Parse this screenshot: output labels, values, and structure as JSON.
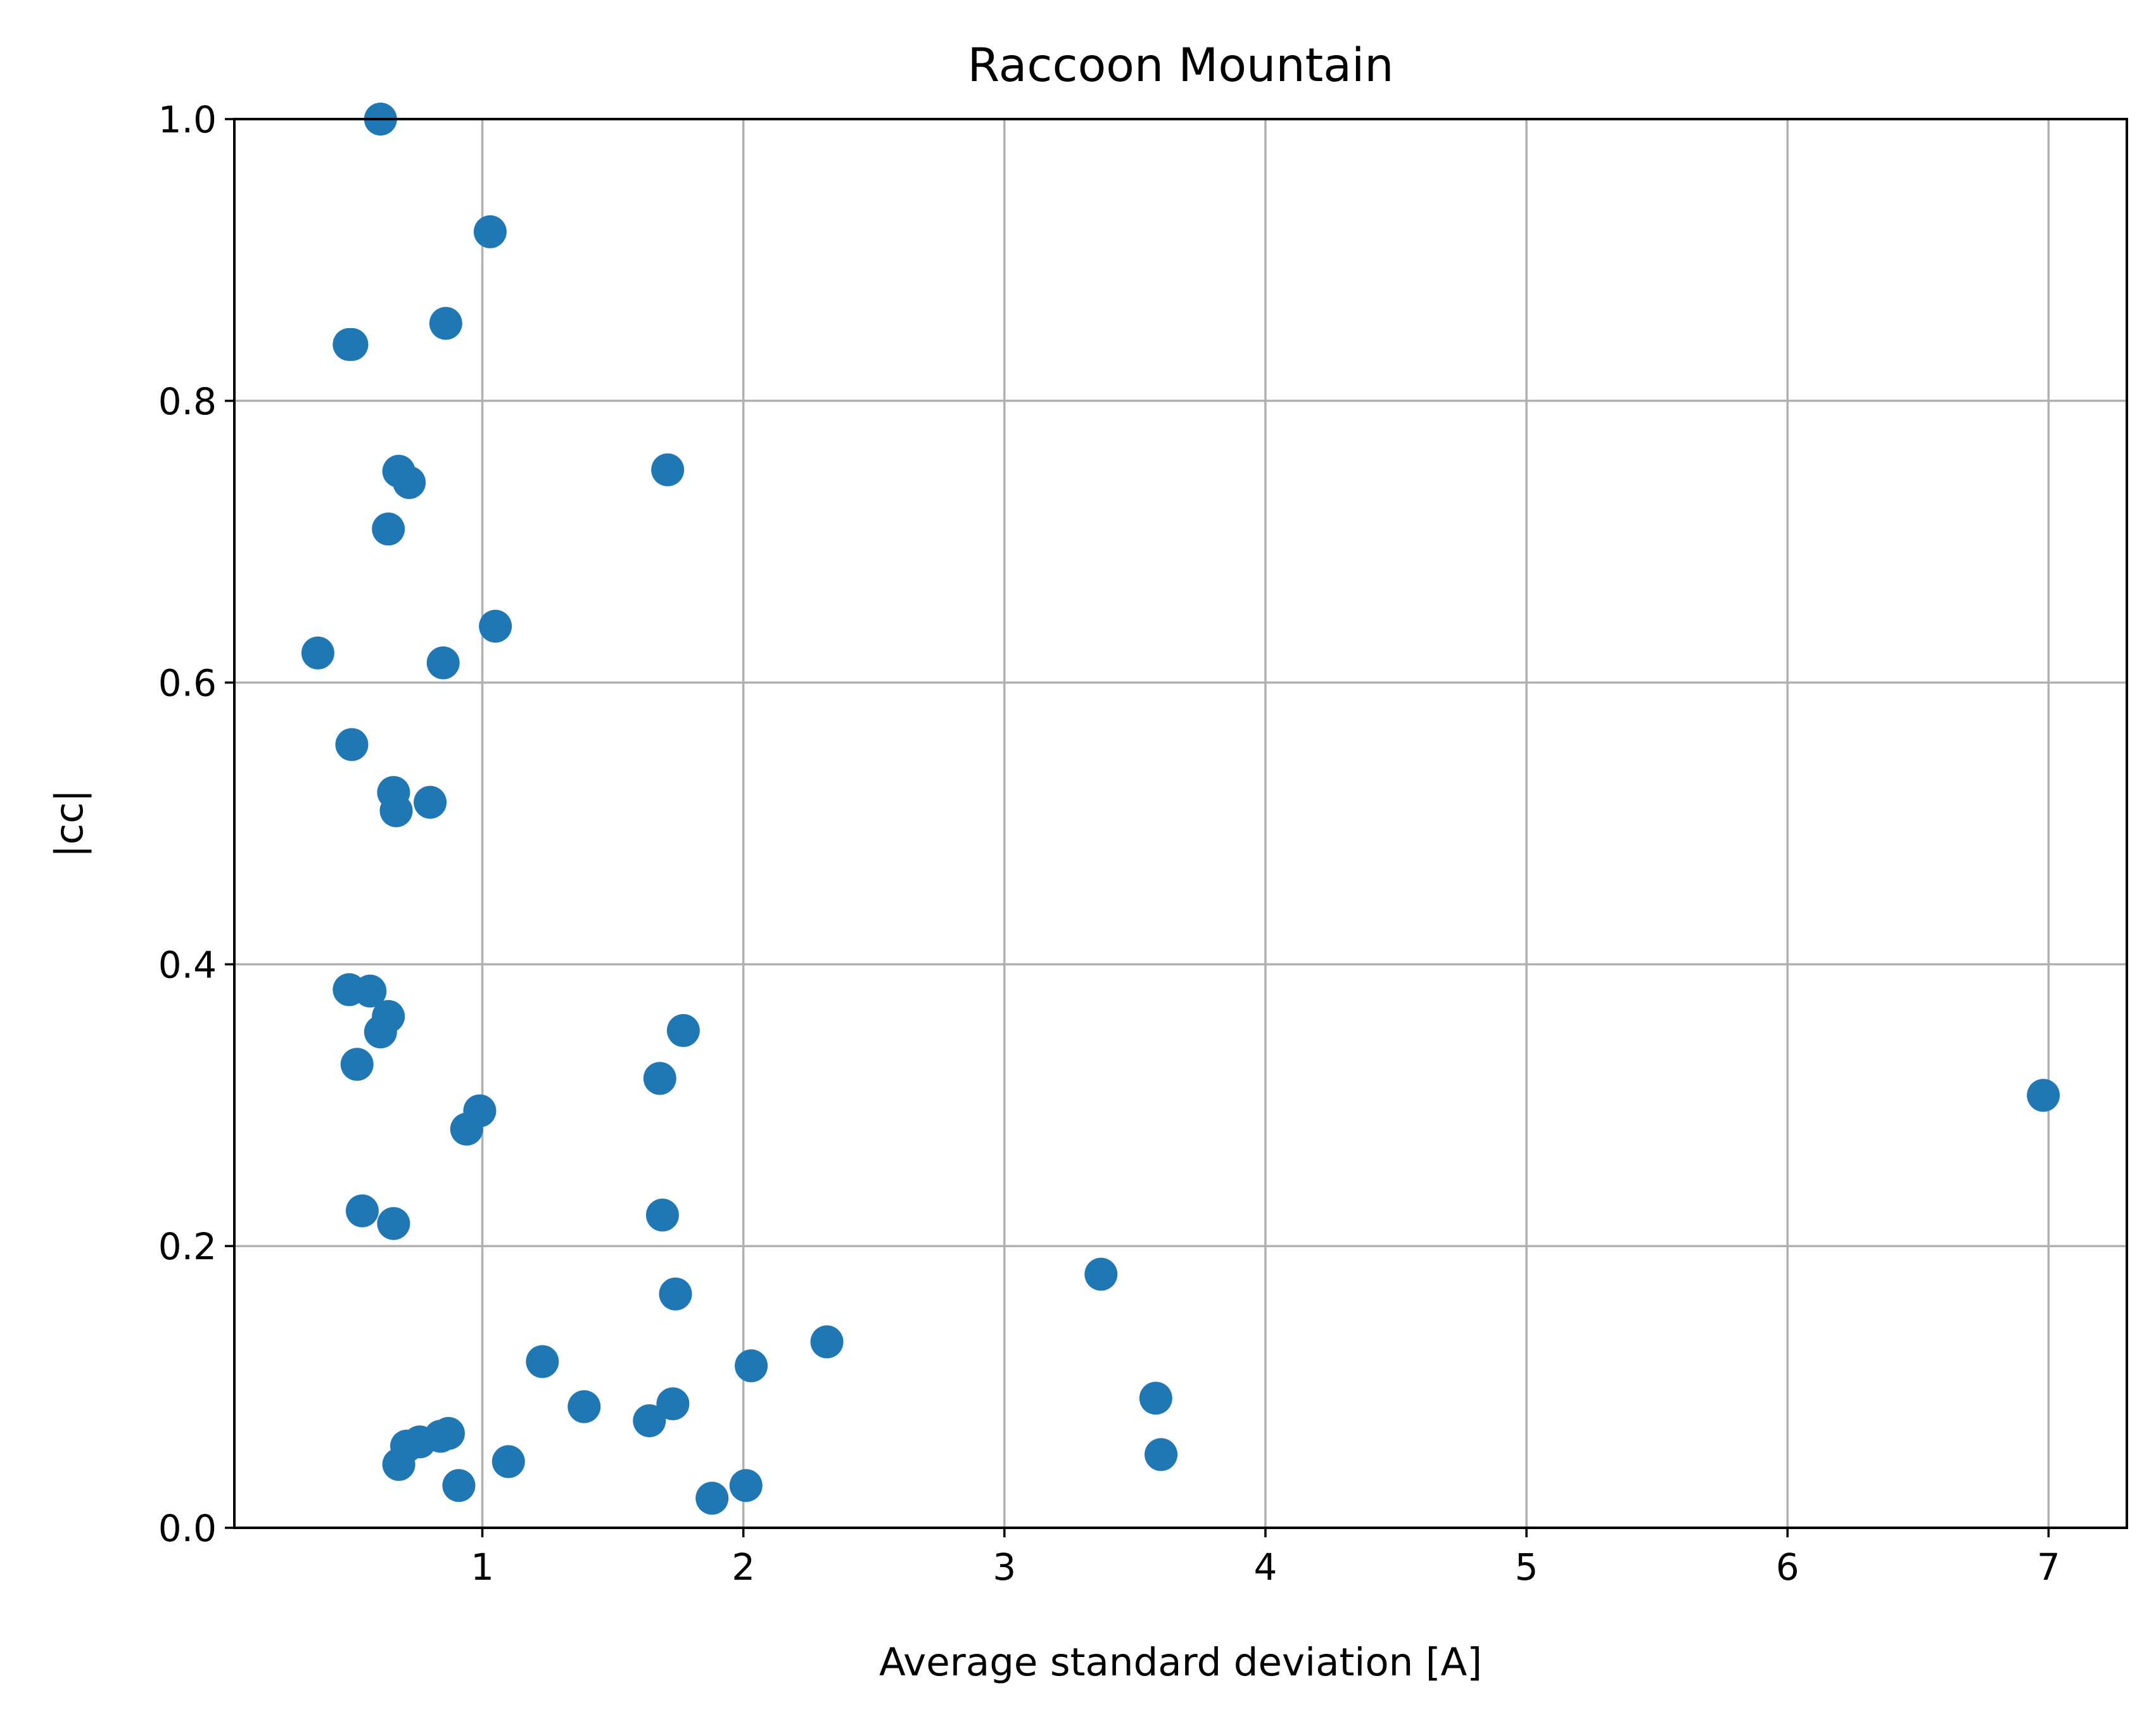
{
  "chart_data": {
    "type": "scatter",
    "title": "Raccoon Mountain",
    "xlabel": "Average standard deviation [A]",
    "ylabel": "|cc|",
    "xlim": [
      0.05,
      7.3
    ],
    "ylim": [
      0.0,
      1.0
    ],
    "x_ticks": [
      1,
      2,
      3,
      4,
      5,
      6,
      7
    ],
    "x_tick_labels": [
      "1",
      "2",
      "3",
      "4",
      "5",
      "6",
      "7"
    ],
    "y_ticks": [
      0.0,
      0.2,
      0.4,
      0.6,
      0.8,
      1.0
    ],
    "y_tick_labels": [
      "0.0",
      "0.2",
      "0.4",
      "0.6",
      "0.8",
      "1.0"
    ],
    "grid": true,
    "marker_color": "#1f77b4",
    "series": [
      {
        "points": [
          [
            0.61,
            1.0
          ],
          [
            1.03,
            0.92
          ],
          [
            0.49,
            0.84
          ],
          [
            0.5,
            0.84
          ],
          [
            0.86,
            0.855
          ],
          [
            0.68,
            0.75
          ],
          [
            0.72,
            0.742
          ],
          [
            1.71,
            0.751
          ],
          [
            0.64,
            0.709
          ],
          [
            1.05,
            0.64
          ],
          [
            0.37,
            0.621
          ],
          [
            0.85,
            0.614
          ],
          [
            0.5,
            0.556
          ],
          [
            0.66,
            0.522
          ],
          [
            0.67,
            0.509
          ],
          [
            0.8,
            0.515
          ],
          [
            0.49,
            0.382
          ],
          [
            0.57,
            0.381
          ],
          [
            0.64,
            0.363
          ],
          [
            0.61,
            0.352
          ],
          [
            0.52,
            0.329
          ],
          [
            1.77,
            0.353
          ],
          [
            1.68,
            0.319
          ],
          [
            0.99,
            0.296
          ],
          [
            0.94,
            0.283
          ],
          [
            6.98,
            0.307
          ],
          [
            0.54,
            0.225
          ],
          [
            0.66,
            0.216
          ],
          [
            1.69,
            0.222
          ],
          [
            3.37,
            0.18
          ],
          [
            1.74,
            0.166
          ],
          [
            2.32,
            0.132
          ],
          [
            1.23,
            0.118
          ],
          [
            2.03,
            0.115
          ],
          [
            1.39,
            0.086
          ],
          [
            1.64,
            0.076
          ],
          [
            1.73,
            0.088
          ],
          [
            3.58,
            0.092
          ],
          [
            0.71,
            0.058
          ],
          [
            0.76,
            0.061
          ],
          [
            0.84,
            0.065
          ],
          [
            0.87,
            0.067
          ],
          [
            0.68,
            0.045
          ],
          [
            1.1,
            0.047
          ],
          [
            0.91,
            0.03
          ],
          [
            2.01,
            0.03
          ],
          [
            1.88,
            0.021
          ],
          [
            3.6,
            0.052
          ]
        ]
      }
    ]
  }
}
